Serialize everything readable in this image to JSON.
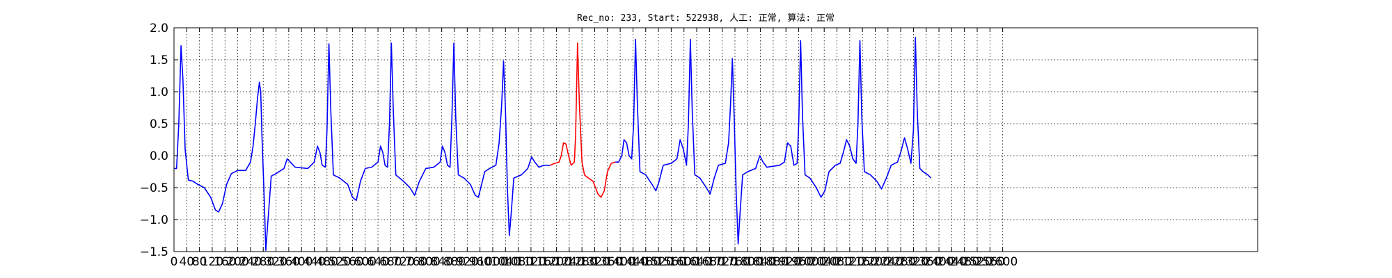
{
  "chart_data": {
    "type": "line",
    "title": "Rec_no: 233, Start: 522938, 人工: 正常, 算法: 正常",
    "xlabel": "",
    "ylabel": "",
    "xlim": [
      0,
      3400
    ],
    "ylim": [
      -1.5,
      2.0
    ],
    "yticks": [
      -1.5,
      -1.0,
      -0.5,
      0.0,
      0.5,
      1.0,
      1.5,
      2.0
    ],
    "ytick_labels": [
      "−1.5",
      "−1.0",
      "−0.5",
      "0.0",
      "0.5",
      "1.0",
      "1.5",
      "2.0"
    ],
    "xticks": [
      0,
      40,
      80,
      120,
      160,
      200,
      240,
      280,
      320,
      360,
      400,
      440,
      480,
      520,
      560,
      600,
      640,
      680,
      720,
      760,
      800,
      840,
      880,
      920,
      960,
      1000,
      1040,
      1080,
      1120,
      1160,
      1200,
      1240,
      1280,
      1320,
      1360,
      1400,
      1440,
      1480,
      1520,
      1560,
      1600,
      1640,
      1680,
      1720,
      1760,
      1800,
      1840,
      1880,
      1920,
      1960,
      2000,
      2040,
      2080,
      2120,
      2160,
      2200,
      2240,
      2280,
      2320,
      2360,
      2400,
      2440,
      2480,
      2520,
      2560,
      2600
    ],
    "grid": true,
    "series": [
      {
        "color": "#0000ff",
        "points": [
          [
            0,
            -0.2
          ],
          [
            8,
            -0.2
          ],
          [
            15,
            0.5
          ],
          [
            22,
            1.72
          ],
          [
            28,
            1.2
          ],
          [
            35,
            0.1
          ],
          [
            45,
            -0.38
          ],
          [
            60,
            -0.4
          ],
          [
            75,
            -0.45
          ],
          [
            95,
            -0.5
          ],
          [
            115,
            -0.65
          ],
          [
            130,
            -0.85
          ],
          [
            140,
            -0.88
          ],
          [
            152,
            -0.75
          ],
          [
            165,
            -0.45
          ],
          [
            180,
            -0.28
          ],
          [
            200,
            -0.23
          ],
          [
            225,
            -0.23
          ],
          [
            240,
            -0.1
          ],
          [
            248,
            0.15
          ],
          [
            255,
            0.5
          ],
          [
            262,
            0.9
          ],
          [
            268,
            1.15
          ],
          [
            272,
            1.0
          ],
          [
            276,
            0.3
          ],
          [
            282,
            -0.5
          ],
          [
            288,
            -1.48
          ],
          [
            295,
            -1.0
          ],
          [
            305,
            -0.32
          ],
          [
            320,
            -0.28
          ],
          [
            345,
            -0.2
          ],
          [
            355,
            -0.05
          ],
          [
            365,
            -0.1
          ],
          [
            380,
            -0.18
          ],
          [
            420,
            -0.2
          ],
          [
            440,
            -0.1
          ],
          [
            450,
            0.15
          ],
          [
            458,
            0.05
          ],
          [
            465,
            -0.15
          ],
          [
            475,
            -0.18
          ],
          [
            480,
            0.4
          ],
          [
            486,
            1.75
          ],
          [
            492,
            0.7
          ],
          [
            500,
            -0.3
          ],
          [
            520,
            -0.35
          ],
          [
            545,
            -0.45
          ],
          [
            560,
            -0.65
          ],
          [
            572,
            -0.7
          ],
          [
            585,
            -0.4
          ],
          [
            600,
            -0.2
          ],
          [
            620,
            -0.18
          ],
          [
            640,
            -0.1
          ],
          [
            648,
            0.15
          ],
          [
            655,
            0.05
          ],
          [
            662,
            -0.15
          ],
          [
            670,
            -0.18
          ],
          [
            676,
            0.5
          ],
          [
            682,
            1.76
          ],
          [
            688,
            0.7
          ],
          [
            696,
            -0.3
          ],
          [
            720,
            -0.4
          ],
          [
            740,
            -0.5
          ],
          [
            755,
            -0.62
          ],
          [
            770,
            -0.4
          ],
          [
            790,
            -0.2
          ],
          [
            815,
            -0.18
          ],
          [
            835,
            -0.1
          ],
          [
            842,
            0.15
          ],
          [
            850,
            0.05
          ],
          [
            858,
            -0.15
          ],
          [
            866,
            -0.18
          ],
          [
            872,
            0.6
          ],
          [
            878,
            1.76
          ],
          [
            884,
            0.6
          ],
          [
            892,
            -0.3
          ],
          [
            910,
            -0.35
          ],
          [
            930,
            -0.45
          ],
          [
            945,
            -0.62
          ],
          [
            955,
            -0.65
          ],
          [
            965,
            -0.45
          ],
          [
            975,
            -0.25
          ],
          [
            990,
            -0.2
          ],
          [
            1010,
            -0.15
          ],
          [
            1020,
            0.2
          ],
          [
            1028,
            0.8
          ],
          [
            1034,
            1.48
          ],
          [
            1040,
            0.7
          ],
          [
            1046,
            -0.5
          ],
          [
            1052,
            -1.25
          ],
          [
            1058,
            -0.9
          ],
          [
            1066,
            -0.35
          ],
          [
            1090,
            -0.3
          ],
          [
            1110,
            -0.2
          ],
          [
            1122,
            -0.02
          ],
          [
            1132,
            -0.1
          ],
          [
            1145,
            -0.18
          ],
          [
            1160,
            -0.15
          ],
          [
            1180,
            -0.15
          ]
        ]
      },
      {
        "color": "#ff0000",
        "points": [
          [
            1180,
            -0.15
          ],
          [
            1195,
            -0.12
          ],
          [
            1208,
            -0.1
          ],
          [
            1215,
            0.0
          ],
          [
            1222,
            0.2
          ],
          [
            1230,
            0.18
          ],
          [
            1238,
            0.0
          ],
          [
            1246,
            -0.15
          ],
          [
            1256,
            -0.1
          ],
          [
            1260,
            0.3
          ],
          [
            1266,
            1.76
          ],
          [
            1272,
            0.8
          ],
          [
            1280,
            -0.1
          ],
          [
            1288,
            -0.3
          ],
          [
            1300,
            -0.35
          ],
          [
            1315,
            -0.4
          ],
          [
            1330,
            -0.6
          ],
          [
            1340,
            -0.65
          ],
          [
            1350,
            -0.55
          ],
          [
            1360,
            -0.25
          ],
          [
            1372,
            -0.12
          ],
          [
            1385,
            -0.1
          ]
        ]
      },
      {
        "color": "#0000ff",
        "points": [
          [
            1385,
            -0.1
          ],
          [
            1395,
            -0.1
          ],
          [
            1405,
            0.0
          ],
          [
            1412,
            0.25
          ],
          [
            1420,
            0.2
          ],
          [
            1428,
            0.0
          ],
          [
            1436,
            -0.05
          ],
          [
            1442,
            0.5
          ],
          [
            1448,
            1.82
          ],
          [
            1454,
            0.8
          ],
          [
            1462,
            -0.25
          ],
          [
            1480,
            -0.3
          ],
          [
            1500,
            -0.45
          ],
          [
            1512,
            -0.55
          ],
          [
            1522,
            -0.4
          ],
          [
            1535,
            -0.15
          ],
          [
            1560,
            -0.12
          ],
          [
            1578,
            -0.05
          ],
          [
            1588,
            0.25
          ],
          [
            1598,
            0.1
          ],
          [
            1608,
            -0.15
          ],
          [
            1614,
            0.5
          ],
          [
            1620,
            1.82
          ],
          [
            1626,
            0.7
          ],
          [
            1634,
            -0.3
          ],
          [
            1650,
            -0.35
          ],
          [
            1670,
            -0.5
          ],
          [
            1682,
            -0.6
          ],
          [
            1695,
            -0.35
          ],
          [
            1708,
            -0.15
          ],
          [
            1730,
            -0.12
          ],
          [
            1740,
            0.2
          ],
          [
            1746,
            0.8
          ],
          [
            1752,
            1.52
          ],
          [
            1758,
            0.5
          ],
          [
            1764,
            -0.6
          ],
          [
            1770,
            -1.38
          ],
          [
            1776,
            -0.9
          ],
          [
            1784,
            -0.3
          ],
          [
            1800,
            -0.25
          ],
          [
            1825,
            -0.2
          ],
          [
            1838,
            0.0
          ],
          [
            1848,
            -0.1
          ],
          [
            1860,
            -0.18
          ],
          [
            1900,
            -0.15
          ],
          [
            1915,
            -0.1
          ],
          [
            1925,
            0.2
          ],
          [
            1935,
            0.15
          ],
          [
            1945,
            -0.15
          ],
          [
            1955,
            -0.12
          ],
          [
            1960,
            0.5
          ],
          [
            1966,
            1.8
          ],
          [
            1972,
            0.6
          ],
          [
            1980,
            -0.3
          ],
          [
            1995,
            -0.35
          ],
          [
            2015,
            -0.5
          ],
          [
            2030,
            -0.65
          ],
          [
            2042,
            -0.55
          ],
          [
            2055,
            -0.25
          ],
          [
            2075,
            -0.15
          ],
          [
            2090,
            -0.12
          ],
          [
            2100,
            0.05
          ],
          [
            2110,
            0.25
          ],
          [
            2120,
            0.15
          ],
          [
            2130,
            -0.05
          ],
          [
            2140,
            -0.12
          ],
          [
            2146,
            0.5
          ],
          [
            2152,
            1.8
          ],
          [
            2158,
            0.6
          ],
          [
            2166,
            -0.25
          ],
          [
            2185,
            -0.3
          ],
          [
            2205,
            -0.4
          ],
          [
            2220,
            -0.52
          ],
          [
            2235,
            -0.35
          ],
          [
            2250,
            -0.15
          ],
          [
            2270,
            -0.1
          ],
          [
            2280,
            0.05
          ],
          [
            2292,
            0.28
          ],
          [
            2302,
            0.1
          ],
          [
            2312,
            -0.12
          ],
          [
            2320,
            0.4
          ],
          [
            2326,
            1.85
          ],
          [
            2332,
            0.7
          ],
          [
            2340,
            -0.2
          ],
          [
            2350,
            -0.25
          ],
          [
            2365,
            -0.3
          ],
          [
            2375,
            -0.35
          ]
        ]
      }
    ]
  }
}
